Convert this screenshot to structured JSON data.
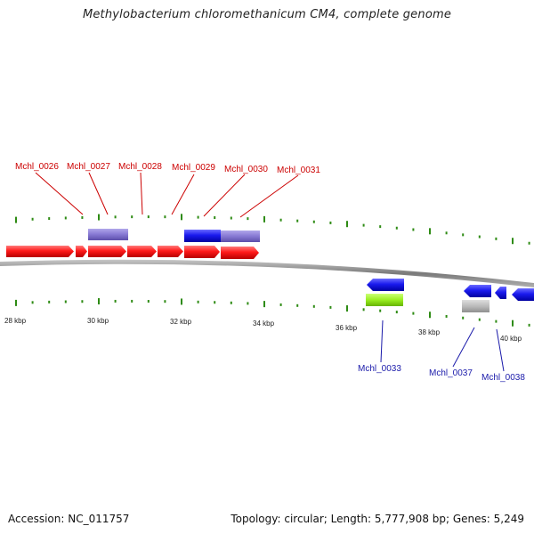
{
  "header": {
    "title": "Methylobacterium chloromethanicum CM4, complete genome"
  },
  "footer": {
    "accession": "Accession: NC_011757",
    "summary": "Topology: circular; Length: 5,777,908 bp; Genes: 5,249"
  },
  "colors": {
    "backbone": "#8c8c8c",
    "tick": "#2e8b14",
    "forward_label": "#cc0000",
    "reverse_label": "#1a1aaa",
    "gene_red": "#ff1a1a",
    "gene_blue": "#1a1aee",
    "gene_lavender": "#8678d2",
    "gene_green": "#99ee22",
    "gene_grey": "#bbbbbb"
  },
  "scale_labels": [
    "28 kbp",
    "30 kbp",
    "32 kbp",
    "34 kbp",
    "36 kbp",
    "38 kbp",
    "40 kbp"
  ],
  "gene_labels_forward": [
    "Mchl_0026",
    "Mchl_0027",
    "Mchl_0028",
    "Mchl_0029",
    "Mchl_0030",
    "Mchl_0031"
  ],
  "gene_labels_reverse": [
    "Mchl_0033",
    "Mchl_0037",
    "Mchl_0038"
  ]
}
